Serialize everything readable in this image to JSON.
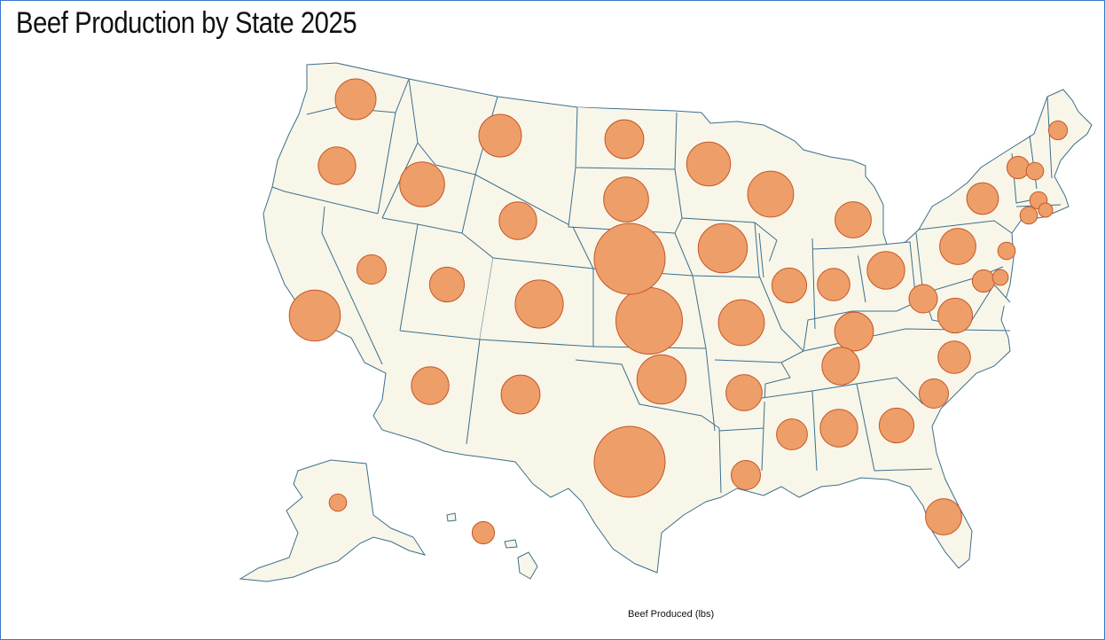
{
  "title": "Beef Production by State 2025",
  "legend": {
    "title": "Beef Produced (lbs)"
  },
  "colors": {
    "land": "#f8f6e8",
    "border": "#3b6f8f",
    "bubble_fill": "#ee9e68",
    "bubble_stroke": "#c4572a"
  },
  "map_data": {
    "type": "proportional-symbol",
    "regions": [
      {
        "state": "TX",
        "value": 100
      },
      {
        "state": "KS",
        "value": 88
      },
      {
        "state": "NE",
        "value": 100
      },
      {
        "state": "OK",
        "value": 48
      },
      {
        "state": "CA",
        "value": 52
      },
      {
        "state": "IA",
        "value": 48
      },
      {
        "state": "SD",
        "value": 40
      },
      {
        "state": "CO",
        "value": 46
      },
      {
        "state": "MO",
        "value": 42
      },
      {
        "state": "WI",
        "value": 42
      },
      {
        "state": "ID",
        "value": 40
      },
      {
        "state": "MN",
        "value": 38
      },
      {
        "state": "MT",
        "value": 36
      },
      {
        "state": "WA",
        "value": 33
      },
      {
        "state": "ND",
        "value": 30
      },
      {
        "state": "KY",
        "value": 30
      },
      {
        "state": "OR",
        "value": 28
      },
      {
        "state": "AL",
        "value": 28
      },
      {
        "state": "TN",
        "value": 28
      },
      {
        "state": "NM",
        "value": 30
      },
      {
        "state": "AZ",
        "value": 28
      },
      {
        "state": "AR",
        "value": 26
      },
      {
        "state": "PA",
        "value": 26
      },
      {
        "state": "OH",
        "value": 28
      },
      {
        "state": "WY",
        "value": 28
      },
      {
        "state": "FL",
        "value": 26
      },
      {
        "state": "MI",
        "value": 26
      },
      {
        "state": "VA",
        "value": 24
      },
      {
        "state": "IL",
        "value": 24
      },
      {
        "state": "UT",
        "value": 24
      },
      {
        "state": "GA",
        "value": 24
      },
      {
        "state": "NY",
        "value": 20
      },
      {
        "state": "IN",
        "value": 21
      },
      {
        "state": "NC",
        "value": 21
      },
      {
        "state": "MS",
        "value": 19
      },
      {
        "state": "LA",
        "value": 17
      },
      {
        "state": "NV",
        "value": 17
      },
      {
        "state": "SC",
        "value": 17
      },
      {
        "state": "WV",
        "value": 16
      },
      {
        "state": "VT",
        "value": 10
      },
      {
        "state": "HI",
        "value": 10
      },
      {
        "state": "MD",
        "value": 10
      },
      {
        "state": "ME",
        "value": 7
      },
      {
        "state": "NH",
        "value": 6
      },
      {
        "state": "AK",
        "value": 6
      },
      {
        "state": "NJ",
        "value": 6
      },
      {
        "state": "MA",
        "value": 6
      },
      {
        "state": "CT",
        "value": 6
      },
      {
        "state": "DE",
        "value": 5
      },
      {
        "state": "RI",
        "value": 4
      }
    ]
  }
}
